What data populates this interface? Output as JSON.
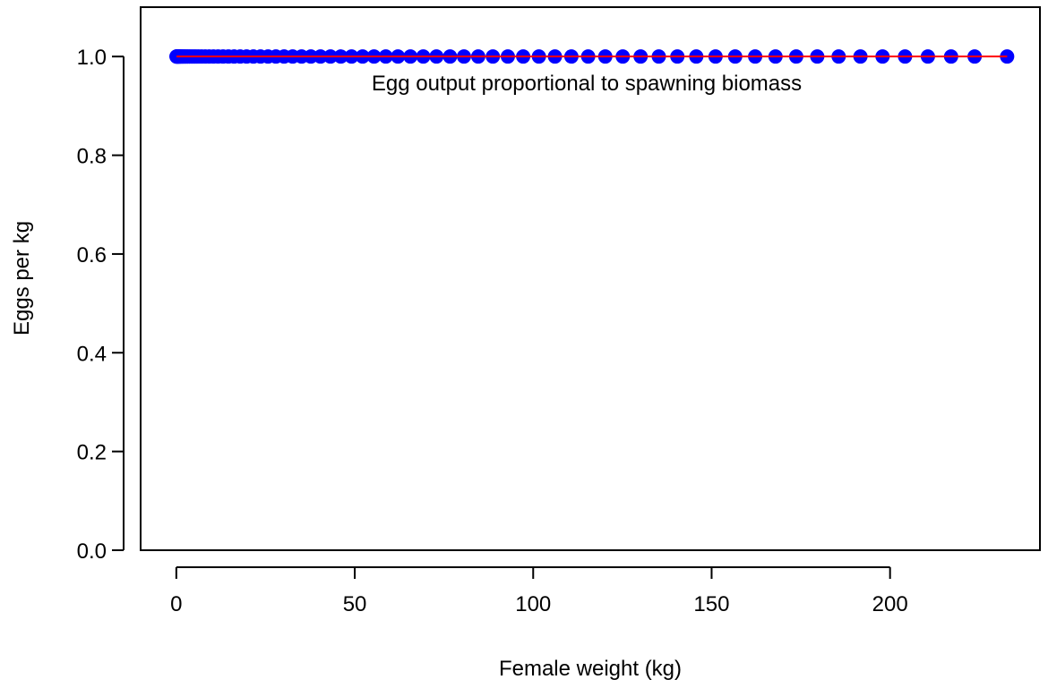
{
  "chart_data": {
    "type": "scatter",
    "title": "",
    "xlabel": "Female weight (kg)",
    "ylabel": "Eggs per kg",
    "xlim": [
      -10,
      242
    ],
    "ylim": [
      0,
      1.1
    ],
    "x_ticks": [
      0,
      50,
      100,
      150,
      200
    ],
    "x_tick_labels": [
      "0",
      "50",
      "100",
      "150",
      "200"
    ],
    "y_ticks": [
      0,
      0.2,
      0.4,
      0.6,
      0.8,
      1.0
    ],
    "y_tick_labels": [
      "0.0",
      "0.2",
      "0.4",
      "0.6",
      "0.8",
      "1.0"
    ],
    "annotation": {
      "text": "Egg output proportional to spawning biomass",
      "x": 116,
      "y": 0.95
    },
    "series": [
      {
        "kind": "points",
        "color": "#0000ff",
        "x": [
          0.05,
          0.1,
          0.2,
          0.3,
          0.45,
          0.6,
          0.8,
          1.0,
          1.3,
          1.6,
          2.0,
          2.4,
          2.9,
          3.4,
          4.0,
          4.7,
          5.4,
          6.2,
          7.1,
          8.1,
          9.2,
          10.4,
          11.7,
          13.1,
          14.6,
          16.2,
          17.9,
          19.7,
          21.6,
          23.6,
          25.7,
          27.9,
          30.2,
          32.6,
          35.1,
          37.7,
          40.4,
          43.2,
          46.1,
          49.1,
          52.2,
          55.4,
          58.7,
          62.1,
          65.6,
          69.2,
          72.9,
          76.7,
          80.6,
          84.6,
          88.7,
          92.9,
          97.2,
          101.6,
          106.1,
          110.7,
          115.4,
          120.2,
          125.1,
          130.1,
          135.2,
          140.4,
          145.7,
          151.1,
          156.6,
          162.2,
          167.9,
          173.7,
          179.6,
          185.6,
          191.7,
          197.9,
          204.2,
          210.6,
          217.1,
          223.7,
          232.8
        ],
        "y_value": 1.0
      },
      {
        "kind": "line",
        "color": "#ff0000",
        "x": [
          0.05,
          232.8
        ],
        "y": [
          1.0,
          1.0
        ]
      }
    ]
  }
}
